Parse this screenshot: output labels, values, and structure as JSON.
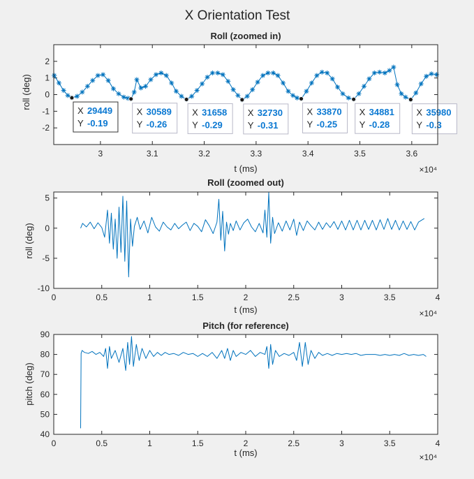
{
  "figure_title": "X Orientation Test",
  "line_color": "#0072bd",
  "chart_data": [
    {
      "type": "line",
      "title": "Roll (zoomed in)",
      "xlabel": "t (ms)",
      "ylabel": "roll (deg)",
      "xlim": [
        29100,
        36500
      ],
      "ylim": [
        -3,
        3
      ],
      "xticks": [
        30000,
        31000,
        32000,
        33000,
        34000,
        35000,
        36000
      ],
      "xtick_labels": [
        "3",
        "3.1",
        "3.2",
        "3.3",
        "3.4",
        "3.5",
        "3.6"
      ],
      "yticks": [
        -2,
        -1,
        0,
        1,
        2
      ],
      "ytick_labels": [
        "-2",
        "-1",
        "0",
        "1",
        "2"
      ],
      "x_exponent_label": "×10⁴",
      "marker": "asterisk",
      "x": [
        29110,
        29200,
        29290,
        29370,
        29449,
        29550,
        29650,
        29750,
        29850,
        29950,
        30050,
        30150,
        30250,
        30350,
        30450,
        30530,
        30589,
        30650,
        30700,
        30780,
        30870,
        30970,
        31070,
        31170,
        31270,
        31370,
        31460,
        31560,
        31658,
        31760,
        31860,
        31960,
        32060,
        32160,
        32260,
        32360,
        32460,
        32560,
        32650,
        32730,
        32830,
        32930,
        33030,
        33130,
        33230,
        33330,
        33420,
        33520,
        33620,
        33710,
        33790,
        33870,
        33970,
        34070,
        34170,
        34270,
        34370,
        34470,
        34570,
        34670,
        34780,
        34881,
        34980,
        35080,
        35180,
        35280,
        35380,
        35480,
        35570,
        35650,
        35720,
        35800,
        35880,
        35980,
        36080,
        36180,
        36280,
        36380,
        36480
      ],
      "y": [
        1.15,
        0.7,
        0.25,
        -0.05,
        -0.19,
        -0.1,
        0.15,
        0.5,
        0.85,
        1.15,
        1.2,
        0.85,
        0.35,
        0.05,
        -0.15,
        -0.22,
        -0.26,
        0.15,
        0.9,
        0.4,
        0.5,
        0.9,
        1.2,
        1.3,
        1.15,
        0.7,
        0.2,
        -0.1,
        -0.29,
        -0.1,
        0.25,
        0.65,
        1.05,
        1.3,
        1.3,
        1.2,
        0.8,
        0.3,
        -0.05,
        -0.31,
        -0.1,
        0.3,
        0.75,
        1.15,
        1.3,
        1.3,
        1.15,
        0.7,
        0.2,
        -0.05,
        -0.2,
        -0.25,
        0.2,
        0.7,
        1.15,
        1.35,
        1.3,
        0.95,
        0.45,
        0.05,
        -0.2,
        -0.28,
        0.05,
        0.5,
        0.95,
        1.3,
        1.35,
        1.3,
        1.45,
        1.65,
        0.6,
        0.05,
        -0.15,
        -0.3,
        0.1,
        0.65,
        1.1,
        1.25,
        1.2
      ],
      "datatips": [
        {
          "x": "29449",
          "y": "-0.19",
          "selected": true
        },
        {
          "x": "30589",
          "y": "-0.26",
          "selected": false
        },
        {
          "x": "31658",
          "y": "-0.29",
          "selected": false
        },
        {
          "x": "32730",
          "y": "-0.31",
          "selected": false
        },
        {
          "x": "33870",
          "y": "-0.25",
          "selected": false
        },
        {
          "x": "34881",
          "y": "-0.28",
          "selected": false
        },
        {
          "x": "35980",
          "y": "-0.3",
          "selected": false
        }
      ],
      "datatip_x_label": "X",
      "datatip_y_label": "Y"
    },
    {
      "type": "line",
      "title": "Roll (zoomed out)",
      "xlabel": "t (ms)",
      "ylabel": "roll (deg)",
      "xlim": [
        0,
        40000
      ],
      "ylim": [
        -10,
        6
      ],
      "xticks": [
        0,
        5000,
        10000,
        15000,
        20000,
        25000,
        30000,
        35000,
        40000
      ],
      "xtick_labels": [
        "0",
        "0.5",
        "1",
        "1.5",
        "2",
        "2.5",
        "3",
        "3.5",
        "4"
      ],
      "yticks": [
        -10,
        -5,
        0,
        5
      ],
      "ytick_labels": [
        "-10",
        "-5",
        "0",
        "5"
      ],
      "x_exponent_label": "×10⁴",
      "x": [
        2800,
        3000,
        3400,
        3800,
        4200,
        4600,
        5000,
        5300,
        5600,
        5800,
        6000,
        6200,
        6400,
        6600,
        6800,
        7000,
        7200,
        7400,
        7600,
        7800,
        8000,
        8200,
        8400,
        8700,
        9000,
        9400,
        9800,
        10200,
        10600,
        11000,
        11400,
        11800,
        12200,
        12600,
        13000,
        13400,
        13800,
        14200,
        14600,
        15000,
        15400,
        15800,
        16200,
        16600,
        17000,
        17200,
        17400,
        17600,
        17800,
        18000,
        18200,
        18400,
        18700,
        19000,
        19400,
        19800,
        20200,
        20600,
        21000,
        21400,
        21800,
        22000,
        22200,
        22400,
        22600,
        22800,
        23000,
        23400,
        23800,
        24200,
        24600,
        25000,
        25300,
        25600,
        26000,
        26400,
        26800,
        27200,
        27600,
        28000,
        28400,
        28800,
        29200,
        29600,
        30000,
        30400,
        30800,
        31200,
        31600,
        32000,
        32400,
        32800,
        33200,
        33600,
        34000,
        34400,
        34800,
        35200,
        35600,
        36000,
        36400,
        36800,
        37200,
        37600,
        38000,
        38600
      ],
      "y": [
        0,
        0.8,
        0.2,
        1.0,
        -0.1,
        0.9,
        0.1,
        -1.5,
        3.0,
        -2.5,
        2.5,
        -3.5,
        1.5,
        -5.0,
        3.5,
        -4.0,
        5.3,
        -5.5,
        4.5,
        -8.1,
        1.5,
        -3.0,
        0.3,
        1.8,
        -0.2,
        1.2,
        -0.8,
        1.8,
        0.2,
        -0.5,
        1.0,
        0.2,
        -0.3,
        0.8,
        -0.1,
        0.5,
        1.0,
        -0.4,
        0.8,
        0.3,
        -0.6,
        1.4,
        0.4,
        -0.9,
        1.0,
        4.8,
        -2.0,
        2.8,
        -3.8,
        1.0,
        -1.0,
        0.8,
        -0.4,
        1.2,
        -0.3,
        0.9,
        1.5,
        0.2,
        -0.6,
        0.8,
        -0.8,
        3.0,
        -1.5,
        5.9,
        -2.5,
        1.8,
        -0.9,
        0.9,
        -0.5,
        1.2,
        -0.3,
        1.5,
        -1.2,
        1.0,
        -0.4,
        1.2,
        0.4,
        -0.3,
        1.0,
        -0.2,
        0.9,
        0.1,
        1.1,
        -0.2,
        1.2,
        -0.3,
        1.3,
        -0.3,
        1.3,
        -0.3,
        1.3,
        -0.2,
        1.3,
        -0.3,
        1.4,
        -0.2,
        1.6,
        -0.2,
        1.3,
        -0.3,
        1.2,
        -0.2,
        1.1,
        -0.3,
        1.0,
        1.6
      ]
    },
    {
      "type": "line",
      "title": "Pitch (for reference)",
      "xlabel": "t (ms)",
      "ylabel": "pitch (deg)",
      "xlim": [
        0,
        40000
      ],
      "ylim": [
        40,
        90
      ],
      "xticks": [
        0,
        5000,
        10000,
        15000,
        20000,
        25000,
        30000,
        35000,
        40000
      ],
      "xtick_labels": [
        "0",
        "0.5",
        "1",
        "1.5",
        "2",
        "2.5",
        "3",
        "3.5",
        "4"
      ],
      "yticks": [
        40,
        50,
        60,
        70,
        80,
        90
      ],
      "ytick_labels": [
        "40",
        "50",
        "60",
        "70",
        "80",
        "90"
      ],
      "x_exponent_label": "×10⁴",
      "x": [
        2800,
        2850,
        2950,
        3200,
        3600,
        4000,
        4400,
        4800,
        5200,
        5400,
        5600,
        5800,
        6000,
        6400,
        6800,
        7200,
        7500,
        7700,
        7900,
        8100,
        8300,
        8600,
        8900,
        9200,
        9600,
        10000,
        10400,
        10800,
        11200,
        11600,
        12000,
        12500,
        13000,
        13500,
        14000,
        14500,
        15000,
        15500,
        16000,
        16500,
        17000,
        17500,
        17800,
        18100,
        18400,
        18700,
        19000,
        19500,
        20000,
        20500,
        21000,
        21500,
        22000,
        22200,
        22400,
        22600,
        22800,
        23100,
        23500,
        24000,
        24500,
        25000,
        25300,
        25600,
        25900,
        26200,
        26500,
        26800,
        27200,
        27600,
        28000,
        28500,
        29000,
        29500,
        30000,
        30500,
        31000,
        31500,
        32000,
        32500,
        33000,
        33500,
        34000,
        34500,
        35000,
        35500,
        36000,
        36500,
        37000,
        37500,
        38000,
        38500,
        38800
      ],
      "y": [
        43,
        80.5,
        82,
        81,
        80.5,
        81.5,
        80,
        81,
        79,
        83,
        73,
        84,
        78,
        82,
        76,
        83,
        72,
        86,
        75,
        89,
        74,
        85,
        77,
        83,
        78,
        82,
        79,
        81,
        79.5,
        81,
        80,
        80.5,
        79.5,
        81,
        80,
        80.5,
        79,
        80.5,
        79,
        81,
        78,
        82,
        78,
        83,
        77,
        82,
        79,
        81,
        80,
        82,
        79,
        81,
        80,
        84,
        73,
        85,
        75,
        82,
        79,
        80.5,
        79.5,
        81,
        77,
        86,
        74,
        86,
        75,
        82,
        78,
        81,
        79.5,
        80.5,
        79.5,
        80.5,
        80,
        80.5,
        80,
        80.5,
        79.5,
        80,
        80,
        80,
        79.5,
        80,
        79.5,
        80,
        79.5,
        80.5,
        79.5,
        80,
        79.5,
        80,
        79
      ]
    }
  ]
}
